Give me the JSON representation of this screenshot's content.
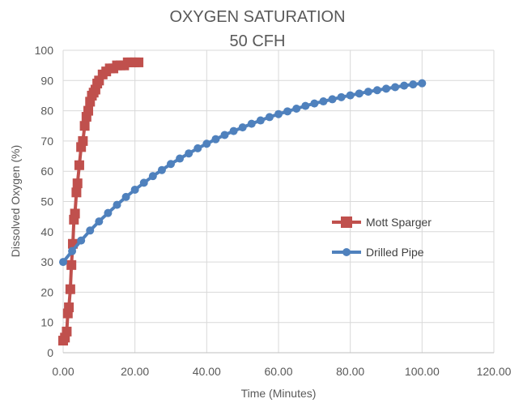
{
  "chart_data": {
    "type": "scatter",
    "title": "OXYGEN SATURATION",
    "subtitle": "50 CFH",
    "xlabel": "Time (Minutes)",
    "ylabel": "Dissolved Oxygen (%)",
    "xlim": [
      0,
      120
    ],
    "ylim": [
      0,
      100
    ],
    "xticks": [
      "0.00",
      "20.00",
      "40.00",
      "60.00",
      "80.00",
      "100.00",
      "120.00"
    ],
    "yticks": [
      "0",
      "10",
      "20",
      "30",
      "40",
      "50",
      "60",
      "70",
      "80",
      "90",
      "100"
    ],
    "grid": true,
    "legend_position": "right",
    "series": [
      {
        "name": "Mott Sparger",
        "color": "#C0504D",
        "marker": "square",
        "x": [
          0.0,
          0.5,
          1.0,
          1.3,
          1.6,
          2.0,
          2.3,
          2.7,
          3.0,
          3.3,
          3.7,
          4.0,
          4.5,
          5.0,
          5.5,
          6.0,
          6.5,
          7.0,
          7.5,
          8.0,
          8.5,
          9.0,
          9.5,
          10.0,
          11.0,
          12.0,
          13.0,
          14.0,
          15.0,
          16.0,
          17.0,
          18.0,
          19.0,
          20.0,
          21.0
        ],
        "y": [
          4,
          5,
          7,
          13,
          15,
          21,
          29,
          36,
          44,
          46,
          53,
          56,
          62,
          68,
          70,
          75,
          78,
          80,
          83,
          85,
          86,
          87,
          89,
          90,
          92,
          93,
          94,
          94,
          95,
          95,
          95,
          96,
          96,
          96,
          96
        ]
      },
      {
        "name": "Drilled Pipe",
        "color": "#4F81BD",
        "marker": "circle",
        "x": [
          0,
          2.5,
          5,
          7.5,
          10,
          12.5,
          15,
          17.5,
          20,
          22.5,
          25,
          27.5,
          30,
          32.5,
          35,
          37.5,
          40,
          42.5,
          45,
          47.5,
          50,
          52.5,
          55,
          57.5,
          60,
          62.5,
          65,
          67.5,
          70,
          72.5,
          75,
          77.5,
          80,
          82.5,
          85,
          87.5,
          90,
          92.5,
          95,
          97.5,
          100
        ],
        "y": [
          30,
          33.6,
          37.1,
          40.4,
          43.4,
          46.2,
          48.9,
          51.5,
          53.9,
          56.2,
          58.4,
          60.4,
          62.4,
          64.2,
          65.9,
          67.6,
          69.1,
          70.6,
          72,
          73.3,
          74.5,
          75.7,
          76.8,
          77.9,
          78.9,
          79.8,
          80.7,
          81.6,
          82.4,
          83.1,
          83.8,
          84.5,
          85.1,
          85.7,
          86.3,
          86.8,
          87.3,
          87.8,
          88.3,
          88.7,
          89.1
        ]
      }
    ]
  }
}
